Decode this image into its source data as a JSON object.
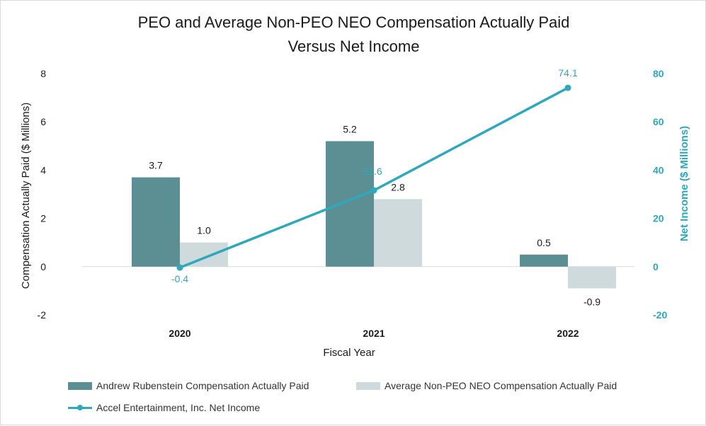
{
  "chart_data": {
    "type": "bar",
    "title": "PEO and Average Non-PEO NEO Compensation Actually Paid",
    "subtitle": "Versus Net Income",
    "xlabel": "Fiscal Year",
    "ylabel": "Compensation Actually Paid ($ Millions)",
    "y2label": "Net Income ($ Millions)",
    "categories": [
      "2020",
      "2021",
      "2022"
    ],
    "ylim": [
      -2,
      8
    ],
    "y2lim": [
      -20,
      80
    ],
    "yticks": [
      "-2",
      "0",
      "2",
      "4",
      "6",
      "8"
    ],
    "y2ticks": [
      "-20",
      "0",
      "20",
      "40",
      "60",
      "80"
    ],
    "grid": false,
    "legend_position": "bottom",
    "series": [
      {
        "name": "Andrew Rubenstein Compensation Actually Paid",
        "type": "bar",
        "axis": "left",
        "color": "#5b8f94",
        "values": [
          3.7,
          5.2,
          0.5
        ],
        "labels": [
          "3.7",
          "5.2",
          "0.5"
        ]
      },
      {
        "name": "Average Non-PEO NEO Compensation Actually Paid",
        "type": "bar",
        "axis": "left",
        "color": "#cfdadd",
        "values": [
          1.0,
          2.8,
          -0.9
        ],
        "labels": [
          "1.0",
          "2.8",
          "-0.9"
        ]
      },
      {
        "name": "Accel Entertainment, Inc. Net Income",
        "type": "line",
        "axis": "right",
        "color": "#2ea8ba",
        "values": [
          -0.4,
          31.6,
          74.1
        ],
        "labels": [
          "-0.4",
          "31.6",
          "74.1"
        ]
      }
    ]
  }
}
